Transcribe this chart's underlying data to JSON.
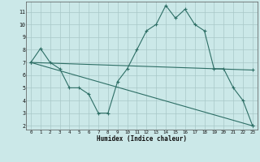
{
  "xlabel": "Humidex (Indice chaleur)",
  "bg_color": "#cbe8e8",
  "line_color": "#2d6e65",
  "grid_color": "#a8c8c8",
  "line1_x": [
    0,
    1,
    2,
    3,
    4,
    5,
    6,
    7,
    8,
    9,
    10,
    11,
    12,
    13,
    14,
    15,
    16,
    17,
    18,
    19,
    20,
    21,
    22,
    23
  ],
  "line1_y": [
    7.0,
    8.1,
    7.0,
    6.5,
    5.0,
    5.0,
    4.5,
    3.0,
    3.0,
    5.5,
    6.5,
    8.0,
    9.5,
    10.0,
    11.5,
    10.5,
    11.2,
    10.0,
    9.5,
    6.5,
    6.5,
    5.0,
    4.0,
    2.0
  ],
  "line2_x": [
    0,
    23
  ],
  "line2_y": [
    7.0,
    6.4
  ],
  "line3_x": [
    0,
    23
  ],
  "line3_y": [
    7.0,
    2.0
  ],
  "xlim": [
    -0.5,
    23.5
  ],
  "ylim": [
    1.7,
    11.8
  ],
  "yticks": [
    2,
    3,
    4,
    5,
    6,
    7,
    8,
    9,
    10,
    11
  ],
  "xticks": [
    0,
    1,
    2,
    3,
    4,
    5,
    6,
    7,
    8,
    9,
    10,
    11,
    12,
    13,
    14,
    15,
    16,
    17,
    18,
    19,
    20,
    21,
    22,
    23
  ]
}
